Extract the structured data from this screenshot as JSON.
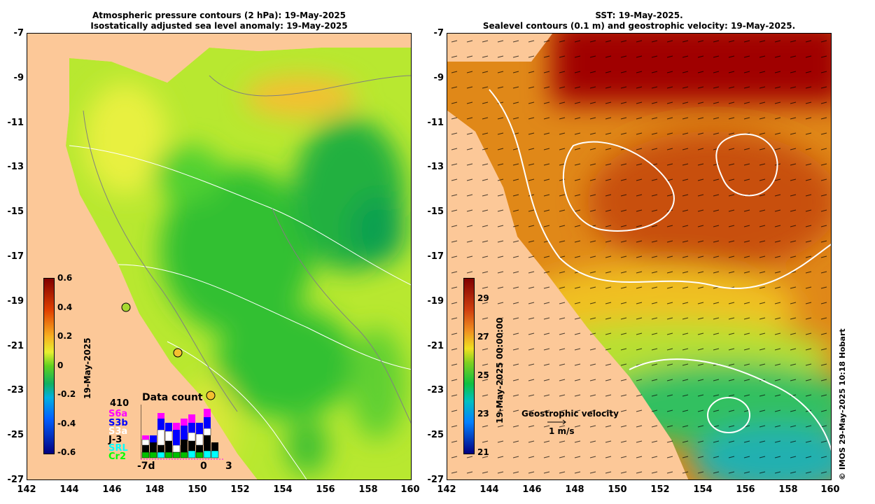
{
  "left_panel": {
    "title_line1": "Atmospheric pressure contours (2 hPa): 19-May-2025",
    "title_line2": "Isostatically adjusted sea level anomaly: 19-May-2025",
    "colorbar": {
      "ticks": [
        "0.6",
        "0.4",
        "0.2",
        "0",
        "-0.2",
        "-0.4",
        "-0.6"
      ],
      "date_label": "19-May-2025"
    },
    "data_count": {
      "title": "Data count",
      "total": "410",
      "satellites": [
        {
          "name": "S6a",
          "color": "#ff00ff"
        },
        {
          "name": "S3b",
          "color": "#0000ff"
        },
        {
          "name": "S3a",
          "color": "#ffffff"
        },
        {
          "name": "J-3",
          "color": "#000000"
        },
        {
          "name": "SRL",
          "color": "#00ffff"
        },
        {
          "name": "Cr2",
          "color": "#00ff00"
        }
      ],
      "axis_labels": [
        "-7d",
        "0",
        "3"
      ]
    }
  },
  "right_panel": {
    "title_line1": "SST: 19-May-2025.",
    "title_line2": "Sealevel contours (0.1 m) and geostrophic velocity: 19-May-2025.",
    "colorbar": {
      "ticks": [
        "29",
        "27",
        "25",
        "23",
        "21"
      ],
      "date_label": "19-May-2025 00:00:00"
    },
    "legend": {
      "title": "Geostrophic velocity",
      "scale_label": "1 m/s"
    }
  },
  "axes": {
    "y_ticks": [
      "-7",
      "-9",
      "-11",
      "-13",
      "-15",
      "-17",
      "-19",
      "-21",
      "-23",
      "-25",
      "-27"
    ],
    "x_ticks": [
      "142",
      "144",
      "146",
      "148",
      "150",
      "152",
      "154",
      "156",
      "158",
      "160"
    ]
  },
  "colors": {
    "land": "#fcc898",
    "slaMid": "#40d020",
    "sstWarm": "#d86010",
    "sstHot": "#a00000"
  },
  "copyright": "© IMOS 29-May-2025 10:18 Hobart"
}
